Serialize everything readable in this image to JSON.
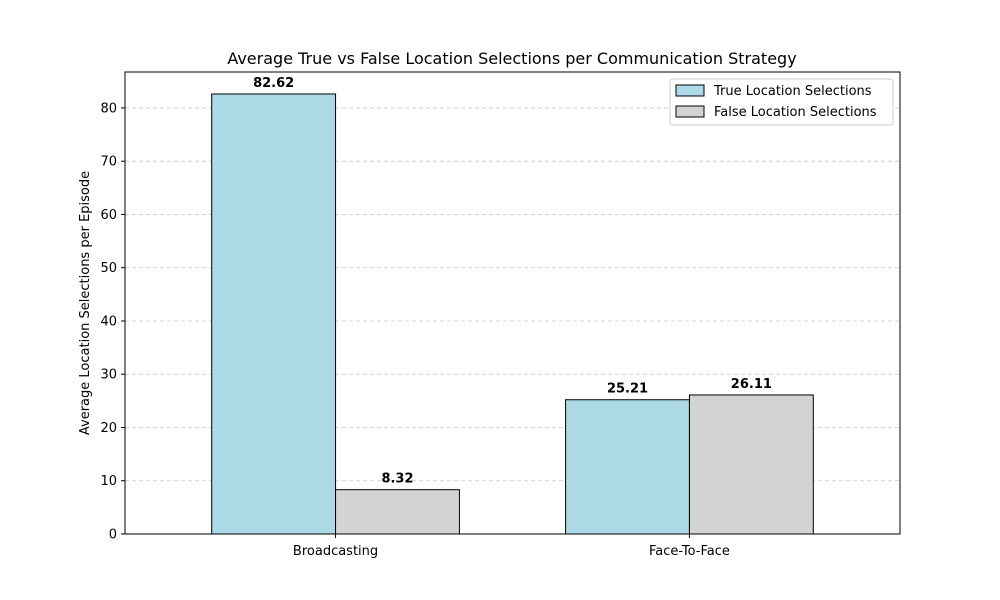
{
  "chart_data": {
    "type": "bar",
    "title": "Average True vs False Location Selections per Communication Strategy",
    "xlabel": "",
    "ylabel": "Average Location Selections per Episode",
    "categories": [
      "Broadcasting",
      "Face-To-Face"
    ],
    "series": [
      {
        "name": "True Location Selections",
        "values": [
          82.62,
          25.21
        ],
        "color": "#add8e6"
      },
      {
        "name": "False Location Selections",
        "values": [
          8.32,
          26.11
        ],
        "color": "#d3d3d3"
      }
    ],
    "value_labels": [
      [
        "82.62",
        "25.21"
      ],
      [
        "8.32",
        "26.11"
      ]
    ],
    "ylim": [
      0,
      86.75
    ],
    "yticks": [
      0,
      10,
      20,
      30,
      40,
      50,
      60,
      70,
      80
    ],
    "grid": "y-dashed",
    "legend_position": "top-right"
  }
}
